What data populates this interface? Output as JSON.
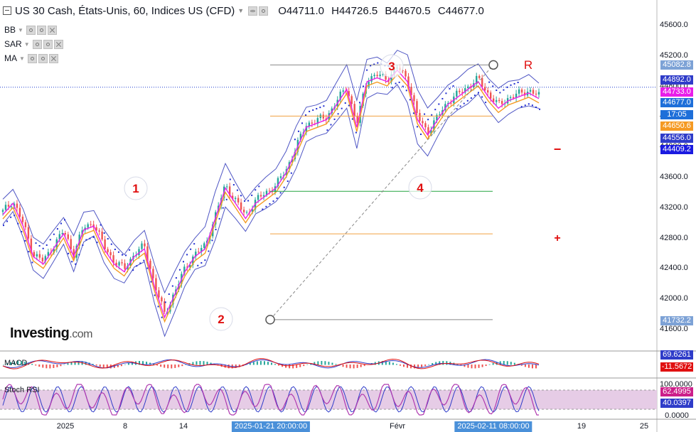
{
  "header": {
    "symbol": "US 30 Cash, États-Unis, 60, Indices US (CFD)",
    "ohlc": [
      {
        "k": "O",
        "v": "44711.0"
      },
      {
        "k": "H",
        "v": "44726.5"
      },
      {
        "k": "B",
        "v": "44670.5"
      },
      {
        "k": "C",
        "v": "44677.0"
      }
    ]
  },
  "indicators": [
    "BB",
    "SAR",
    "MA"
  ],
  "logo": {
    "brand": "Investing",
    "suffix": ".com"
  },
  "sub_labels": {
    "macd": "MACD",
    "stoch": "Stoch RSI"
  },
  "price_axis": {
    "ticks": [
      "45600.0",
      "45200.0",
      "44800.0",
      "44400.0",
      "44000.0",
      "43600.0",
      "43200.0",
      "42800.0",
      "42400.0",
      "42000.0",
      "41600.0"
    ]
  },
  "price_badges": [
    {
      "label": "45082.8",
      "color": "#7da2d6",
      "text_color": "#ffffff"
    },
    {
      "label": "44892.0",
      "color": "#2f3cc9",
      "text_color": "#ffffff"
    },
    {
      "label": "44733.0",
      "color": "#e91ee9",
      "text_color": "#ffffff"
    },
    {
      "label": "44677.0",
      "color": "#1e6fd9",
      "text_color": "#ffffff"
    },
    {
      "label": "17:05",
      "color": "#1e6fd9",
      "text_color": "#ffffff"
    },
    {
      "label": "44650.6",
      "color": "#f59a23",
      "text_color": "#ffffff"
    },
    {
      "label": "44556.0",
      "color": "#2f3cc9",
      "text_color": "#ffffff"
    },
    {
      "label": "44409.2",
      "color": "#1a1ae0",
      "text_color": "#ffffff"
    },
    {
      "label": "41732.2",
      "color": "#7da2d6",
      "text_color": "#ffffff"
    }
  ],
  "macd_badges": [
    {
      "label": "69.6261",
      "color": "#2f3cc9"
    },
    {
      "label": "-11.5672",
      "color": "#e01010"
    }
  ],
  "stoch_badges": [
    {
      "label": "62.4995",
      "color": "#cc1f8a"
    },
    {
      "label": "40.0397",
      "color": "#2f3cc9"
    },
    {
      "label": "0.0000",
      "color": "transparent"
    }
  ],
  "stoch_axis_top": "100.0000",
  "x_axis": {
    "ticks": [
      "2025",
      "8",
      "14",
      "Févr",
      "19",
      "25"
    ],
    "highlighted": [
      "2025-01-21 20:00:00",
      "2025-02-11 08:00:00"
    ]
  },
  "annotations": {
    "waves": [
      "1",
      "2",
      "3",
      "4"
    ],
    "r_label": "R",
    "minus": "−",
    "plus": "+"
  },
  "colors": {
    "candle_up": "#26a69a",
    "candle_down": "#ef5350",
    "bb": "#4f56c4",
    "sar": "#1e2bd0",
    "ma_fast": "#e91ee9",
    "ma_slow": "#f59a23",
    "fib_orange": "#f0a040",
    "fib_green": "#26a640",
    "fib_grey": "#888888",
    "wave_text": "#e01010",
    "stoch_band": "#e6cce6"
  },
  "chart_data": {
    "type": "candlestick",
    "title": "US 30 Cash, États-Unis, 60, Indices US (CFD)",
    "timeframe": "60",
    "last_bar": {
      "open": 44711.0,
      "high": 44726.5,
      "low": 44670.5,
      "close": 44677.0
    },
    "y_range": [
      41500,
      45800
    ],
    "x_ticks": [
      "2025",
      "8",
      "14",
      "Févr",
      "19",
      "25"
    ],
    "price_path_close": [
      43150,
      43300,
      43000,
      42600,
      42500,
      42700,
      42900,
      42600,
      42950,
      43000,
      42700,
      42500,
      42400,
      42600,
      42700,
      42200,
      41800,
      42100,
      42400,
      42600,
      42700,
      43100,
      43500,
      43300,
      43100,
      43300,
      43400,
      43500,
      43700,
      44000,
      44300,
      44350,
      44400,
      44600,
      44800,
      44300,
      44900,
      44950,
      44900,
      45050,
      44900,
      44400,
      44200,
      44400,
      44600,
      44700,
      44800,
      44900,
      44700,
      44550,
      44650,
      44700,
      44750,
      44677
    ],
    "horizontal_levels": [
      {
        "value": 45082.8,
        "color": "grey"
      },
      {
        "value": 44409.2,
        "color": "orange"
      },
      {
        "value": 43420,
        "color": "green"
      },
      {
        "value": 42860,
        "color": "orange"
      },
      {
        "value": 41732.2,
        "color": "grey"
      }
    ],
    "current_price": 44677.0,
    "indicator_values": {
      "bb_upper": 44892.0,
      "bb_lower": 44556.0,
      "ma_fast": 44733.0,
      "ma_slow": 44650.6,
      "sar": 44409.2,
      "macd": 69.6261,
      "macd_signal": -11.5672,
      "stoch_k": 62.4995,
      "stoch_d": 40.0397
    },
    "wave_labels": [
      "1",
      "2",
      "3",
      "4"
    ],
    "grid": false
  }
}
